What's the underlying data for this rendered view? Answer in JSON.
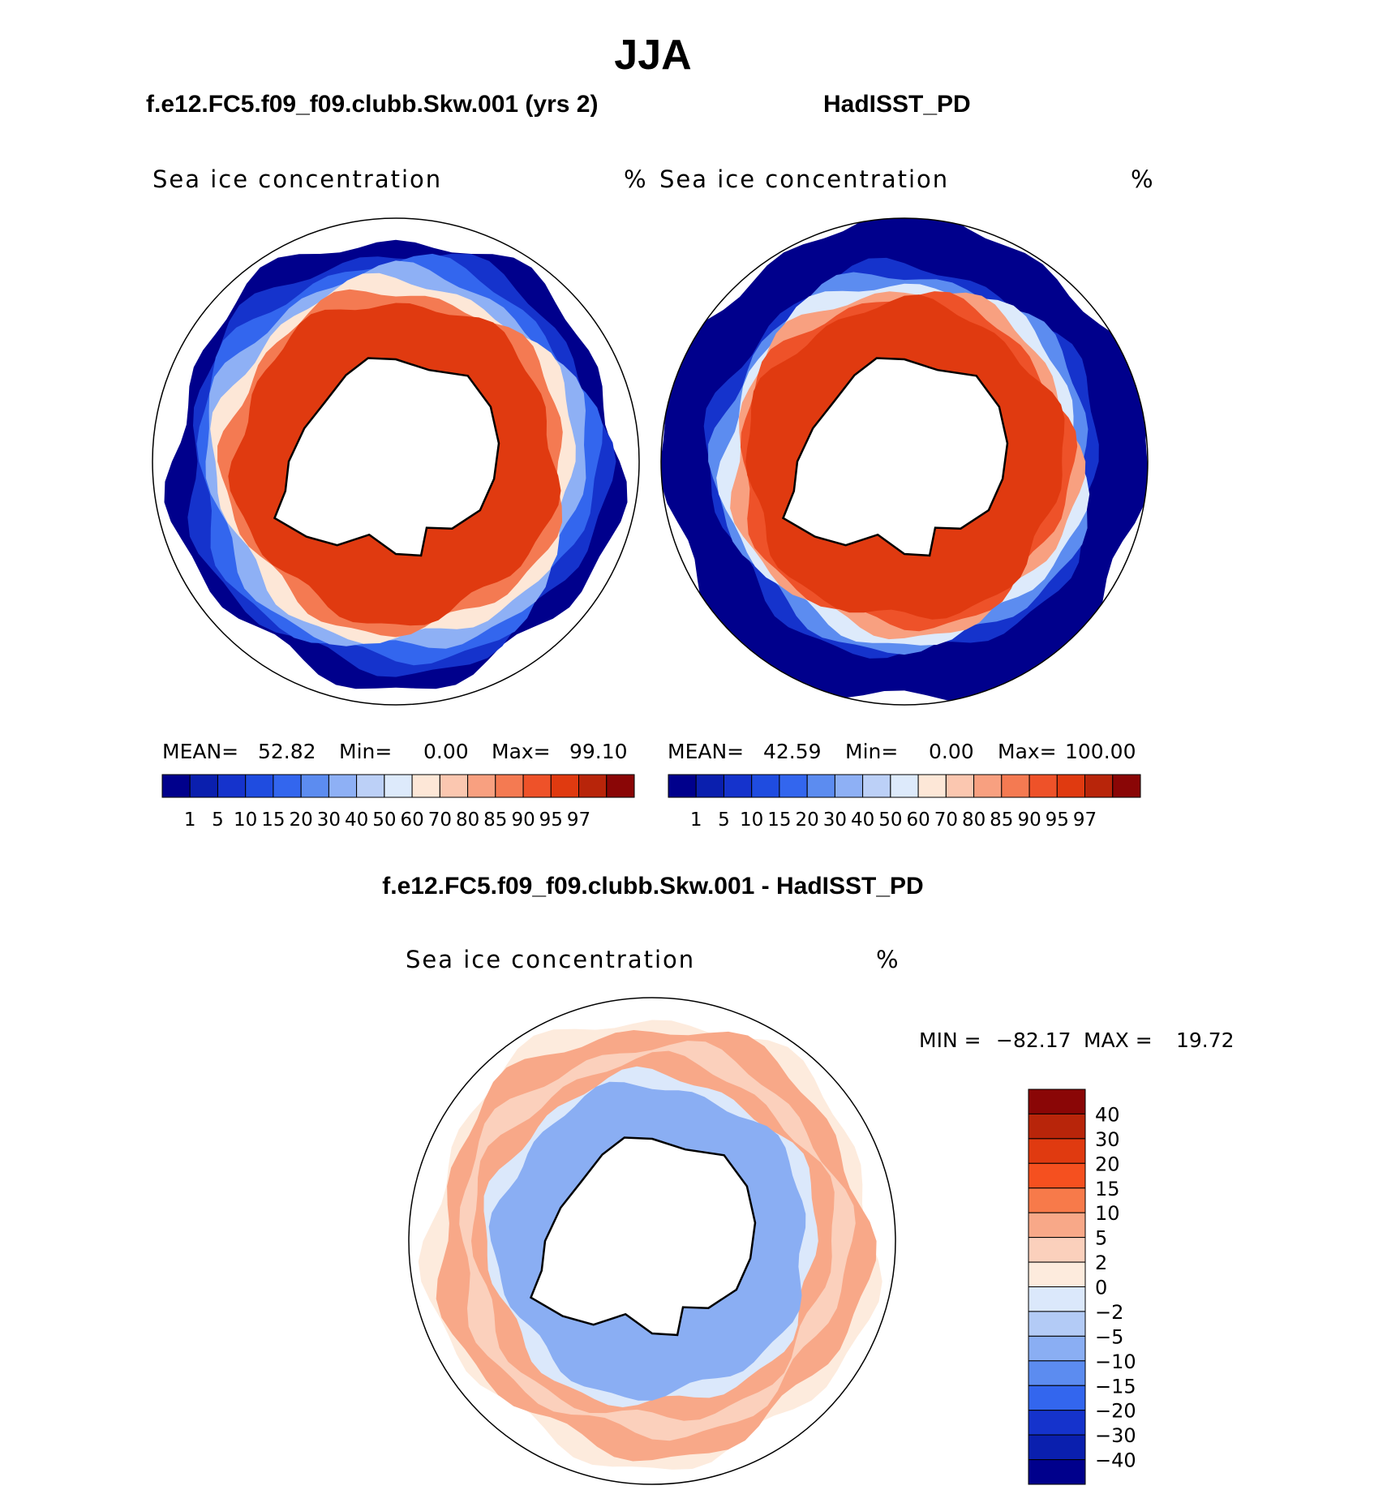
{
  "title": "JJA",
  "chart_data": [
    {
      "type": "heatmap",
      "projection": "south-polar-stereographic",
      "title": "f.e12.FC5.f09_f09.clubb.Skw.001 (yrs 2)",
      "variable": "Sea ice concentration",
      "units": "%",
      "stats": {
        "mean_label": "MEAN=",
        "mean": "52.82",
        "min_label": "Min=",
        "min": "0.00",
        "max_label": "Max=",
        "max": "99.10"
      },
      "levels": [
        "1",
        "5",
        "10",
        "15",
        "20",
        "30",
        "40",
        "50",
        "60",
        "70",
        "80",
        "85",
        "90",
        "95",
        "97"
      ],
      "colors": [
        "#00008c",
        "#0a1fae",
        "#1533cc",
        "#1f4ce0",
        "#3366ee",
        "#5c8cf0",
        "#8eb0f5",
        "#bcd0f7",
        "#ddeafb",
        "#fde7d7",
        "#fbc7b0",
        "#f8a080",
        "#f47a52",
        "#ee5229",
        "#e03a10",
        "#b8250a",
        "#8a0606"
      ],
      "rings": [
        {
          "r_frac": 0.92,
          "level_index": 0
        },
        {
          "r_frac": 0.86,
          "level_index": 2
        },
        {
          "r_frac": 0.82,
          "level_index": 4
        },
        {
          "r_frac": 0.78,
          "level_index": 6
        },
        {
          "r_frac": 0.74,
          "level_index": 9
        },
        {
          "r_frac": 0.7,
          "level_index": 12
        },
        {
          "r_frac": 0.66,
          "level_index": 14
        }
      ]
    },
    {
      "type": "heatmap",
      "projection": "south-polar-stereographic",
      "title": "HadISST_PD",
      "variable": "Sea ice concentration",
      "units": "%",
      "stats": {
        "mean_label": "MEAN=",
        "mean": "42.59",
        "min_label": "Min=",
        "min": "0.00",
        "max_label": "Max=",
        "max": "100.00"
      },
      "levels": [
        "1",
        "5",
        "10",
        "15",
        "20",
        "30",
        "40",
        "50",
        "60",
        "70",
        "80",
        "85",
        "90",
        "95",
        "97"
      ],
      "colors": [
        "#00008c",
        "#0a1fae",
        "#1533cc",
        "#1f4ce0",
        "#3366ee",
        "#5c8cf0",
        "#8eb0f5",
        "#bcd0f7",
        "#ddeafb",
        "#fde7d7",
        "#fbc7b0",
        "#f8a080",
        "#f47a52",
        "#ee5229",
        "#e03a10",
        "#b8250a",
        "#8a0606"
      ],
      "rings": [
        {
          "r_frac": 1.0,
          "level_index": 0
        },
        {
          "r_frac": 0.8,
          "level_index": 2
        },
        {
          "r_frac": 0.77,
          "level_index": 5
        },
        {
          "r_frac": 0.74,
          "level_index": 8
        },
        {
          "r_frac": 0.71,
          "level_index": 11
        },
        {
          "r_frac": 0.68,
          "level_index": 13
        },
        {
          "r_frac": 0.65,
          "level_index": 14
        }
      ]
    },
    {
      "type": "heatmap",
      "projection": "south-polar-stereographic",
      "title": "f.e12.FC5.f09_f09.clubb.Skw.001 - HadISST_PD",
      "variable": "Sea ice concentration",
      "units": "%",
      "stats": {
        "min_label": "MIN =",
        "min": "−82.17",
        "max_label": "MAX =",
        "max": "19.72"
      },
      "levels": [
        "40",
        "30",
        "20",
        "15",
        "10",
        "5",
        "2",
        "0",
        "−2",
        "−5",
        "−10",
        "−15",
        "−20",
        "−30",
        "−40"
      ],
      "colors": [
        "#8a0606",
        "#b8250a",
        "#e03a10",
        "#f5501f",
        "#f77a4a",
        "#f8a888",
        "#fbd0bc",
        "#fdebdd",
        "#dbe8fb",
        "#b3cbf6",
        "#8aaef3",
        "#5c8cf0",
        "#3366ee",
        "#1533cc",
        "#0a1fae",
        "#00008c"
      ],
      "rings": [
        {
          "r_frac": 0.92,
          "level_index": 7
        },
        {
          "r_frac": 0.88,
          "level_index": 5
        },
        {
          "r_frac": 0.8,
          "level_index": 6
        },
        {
          "r_frac": 0.74,
          "level_index": 5
        },
        {
          "r_frac": 0.68,
          "level_index": 8
        },
        {
          "r_frac": 0.64,
          "level_index": 10
        }
      ]
    }
  ]
}
